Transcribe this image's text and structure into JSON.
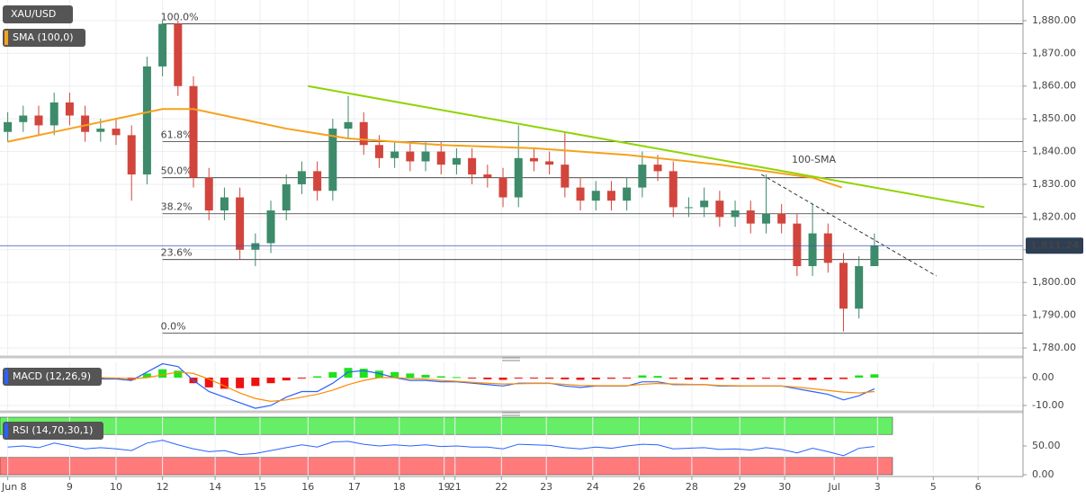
{
  "chart_data": [
    {
      "type": "candlestick",
      "title": "XAU/USD",
      "up_color": "#3d8b6a",
      "down_color": "#d2453c",
      "x": [
        0,
        1,
        2,
        3,
        4,
        5,
        6,
        7,
        8,
        9,
        10,
        11,
        12,
        13,
        14,
        15,
        16,
        17,
        18,
        19,
        20,
        21,
        22,
        23,
        24,
        25,
        26,
        27,
        28,
        29,
        30,
        31,
        32,
        33,
        34,
        35,
        36,
        37,
        38,
        39,
        40,
        41,
        42,
        43,
        44,
        45,
        46,
        47,
        48,
        49,
        50,
        51,
        52,
        53,
        54,
        55,
        56
      ],
      "open": [
        1846,
        1849,
        1851,
        1848,
        1855,
        1851,
        1846,
        1847,
        1845,
        1833,
        1866,
        1879,
        1860,
        1832,
        1822,
        1826,
        1810,
        1812,
        1822,
        1830,
        1834,
        1828,
        1847,
        1849,
        1842,
        1838,
        1840,
        1837,
        1840,
        1836,
        1838,
        1833,
        1832,
        1826,
        1838,
        1837,
        1836,
        1829,
        1825,
        1828,
        1825,
        1829,
        1836,
        1834,
        1823,
        1823,
        1825,
        1820,
        1822,
        1818,
        1821,
        1818,
        1805,
        1815,
        1806,
        1792,
        1805
      ],
      "high": [
        1852,
        1854,
        1854,
        1858,
        1858,
        1854,
        1850,
        1850,
        1848,
        1869,
        1880,
        1880,
        1863,
        1835,
        1829,
        1829,
        1815,
        1825,
        1833,
        1837,
        1837,
        1850,
        1857,
        1852,
        1845,
        1843,
        1843,
        1843,
        1843,
        1841,
        1841,
        1836,
        1835,
        1848,
        1841,
        1840,
        1846,
        1832,
        1831,
        1831,
        1832,
        1840,
        1839,
        1837,
        1826,
        1829,
        1828,
        1825,
        1825,
        1833,
        1824,
        1821,
        1824,
        1818,
        1809,
        1808,
        1815
      ],
      "low": [
        1843,
        1846,
        1845,
        1845,
        1848,
        1843,
        1843,
        1842,
        1825,
        1830,
        1863,
        1857,
        1829,
        1819,
        1819,
        1807,
        1805,
        1809,
        1819,
        1827,
        1825,
        1825,
        1844,
        1839,
        1835,
        1835,
        1834,
        1834,
        1833,
        1833,
        1830,
        1829,
        1823,
        1823,
        1834,
        1833,
        1826,
        1822,
        1822,
        1822,
        1822,
        1826,
        1831,
        1820,
        1820,
        1820,
        1817,
        1817,
        1815,
        1815,
        1815,
        1802,
        1802,
        1803,
        1785,
        1789,
        1805
      ],
      "close": [
        1849,
        1851,
        1848,
        1855,
        1851,
        1846,
        1847,
        1845,
        1833,
        1866,
        1879,
        1860,
        1832,
        1822,
        1826,
        1810,
        1812,
        1822,
        1830,
        1834,
        1828,
        1847,
        1849,
        1842,
        1838,
        1840,
        1837,
        1840,
        1836,
        1838,
        1833,
        1832,
        1826,
        1838,
        1837,
        1836,
        1829,
        1825,
        1828,
        1825,
        1829,
        1836,
        1834,
        1823,
        1823,
        1825,
        1820,
        1822,
        1818,
        1821,
        1818,
        1805,
        1815,
        1806,
        1792,
        1805,
        1811.24
      ],
      "sma": {
        "name": "SMA (100,0)",
        "color": "#f5a21b",
        "x": [
          0,
          5,
          10,
          12,
          15,
          18,
          22,
          28,
          34,
          40,
          46,
          52,
          53.9
        ],
        "values": [
          1843,
          1848,
          1853,
          1853,
          1850,
          1847,
          1844,
          1842,
          1841,
          1839,
          1836,
          1832,
          1829
        ]
      },
      "annotation": "100-SMA",
      "trend_lines": [
        {
          "color": "#8fd400",
          "dashed": false,
          "x": [
            19.4,
            63.1
          ],
          "values": [
            1860,
            1823
          ]
        },
        {
          "color": "#333333",
          "dashed": true,
          "x": [
            48.7,
            60
          ],
          "values": [
            1833,
            1802
          ]
        }
      ],
      "fib_levels": [
        {
          "label": "100.0%",
          "value": 1879
        },
        {
          "label": "61.8%",
          "value": 1843
        },
        {
          "label": "50.0%",
          "value": 1832
        },
        {
          "label": "38.2%",
          "value": 1821
        },
        {
          "label": "23.6%",
          "value": 1807
        },
        {
          "label": "0.0%",
          "value": 1784.5
        }
      ],
      "fib_start": 10,
      "last_price": {
        "value": 1811.24,
        "label": "1,811.24"
      },
      "xlim": [
        -0.5,
        65.6
      ],
      "ylim": [
        1777.8,
        1886.3
      ],
      "yticks": [
        {
          "value": 1780,
          "label": "1,780.00"
        },
        {
          "value": 1790,
          "label": "1,790.00"
        },
        {
          "value": 1800,
          "label": "1,800.00"
        },
        {
          "value": 1810,
          "label": "1,810.00"
        },
        {
          "value": 1820,
          "label": "1,820.00"
        },
        {
          "value": 1830,
          "label": "1,830.00"
        },
        {
          "value": 1840,
          "label": "1,840.00"
        },
        {
          "value": 1850,
          "label": "1,850.00"
        },
        {
          "value": 1860,
          "label": "1,860.00"
        },
        {
          "value": 1870,
          "label": "1,870.00"
        },
        {
          "value": 1880,
          "label": "1,880.00"
        }
      ]
    },
    {
      "type": "macd",
      "title": "MACD (12,26,9)",
      "up_color": "#1de21d",
      "down_color": "#ee1111",
      "histogram": [
        0,
        -0.3,
        -0.5,
        -0.2,
        0.3,
        -0.3,
        -0.5,
        -0.4,
        -0.8,
        1.5,
        3.0,
        2.5,
        -2.0,
        -3.5,
        -4.0,
        -3.8,
        -3.0,
        -2.0,
        -1.0,
        -0.3,
        0.5,
        2.0,
        3.5,
        3.2,
        2.5,
        2.0,
        1.5,
        1.0,
        0.5,
        0.2,
        -0.3,
        -0.6,
        -0.8,
        -0.3,
        -0.2,
        -0.4,
        -0.6,
        -0.8,
        -0.6,
        -0.4,
        -0.2,
        0.8,
        0.6,
        -0.4,
        -0.7,
        -0.6,
        -0.7,
        -0.6,
        -0.6,
        -0.4,
        -0.5,
        -0.7,
        -0.8,
        -0.6,
        -0.5,
        0.8,
        1.2
      ],
      "lines": [
        {
          "color": "#2962ff",
          "values": [
            0,
            0.2,
            0,
            0.5,
            0.5,
            0,
            -0.5,
            -0.5,
            -1,
            2,
            5,
            4,
            -1,
            -5,
            -7,
            -9,
            -11,
            -10,
            -7,
            -5,
            -5,
            -2,
            2,
            2.5,
            1.5,
            0,
            -1,
            -1,
            -1.5,
            -1.5,
            -2,
            -2.5,
            -3,
            -2,
            -2,
            -2,
            -3,
            -3.5,
            -3,
            -3,
            -3,
            -1.5,
            -1.5,
            -2.5,
            -2.5,
            -2.5,
            -3,
            -3,
            -3,
            -3,
            -3,
            -4,
            -5,
            -6,
            -8,
            -6.5,
            -4
          ]
        },
        {
          "color": "#ff8c00",
          "values": [
            0,
            0,
            0,
            0.2,
            0.3,
            0.2,
            0,
            -0.2,
            -0.4,
            0,
            1,
            2,
            1.5,
            -0.5,
            -3,
            -5.5,
            -7.5,
            -8.5,
            -8,
            -7,
            -6,
            -4.5,
            -2.5,
            -1,
            0,
            0,
            -0.3,
            -0.5,
            -1,
            -1.3,
            -1.7,
            -2,
            -2.3,
            -2.2,
            -2.1,
            -2.1,
            -2.4,
            -2.8,
            -2.9,
            -2.9,
            -2.9,
            -2.4,
            -2.1,
            -2.3,
            -2.4,
            -2.5,
            -2.8,
            -2.9,
            -3,
            -3,
            -3,
            -3.4,
            -4,
            -4.6,
            -5.2,
            -5.5,
            -5
          ]
        }
      ],
      "xlim": [
        -0.5,
        65.6
      ],
      "ylim": [
        -11.3,
        5.5
      ],
      "yticks": [
        {
          "value": 0,
          "label": "0.00"
        },
        {
          "value": -10,
          "label": "-10.00"
        }
      ]
    },
    {
      "type": "line",
      "title": "RSI (14,70,30,1)",
      "color": "#2962ff",
      "values": [
        48,
        50,
        47,
        55,
        50,
        45,
        47,
        45,
        42,
        55,
        60,
        52,
        45,
        40,
        42,
        35,
        37,
        42,
        47,
        52,
        48,
        57,
        58,
        53,
        50,
        52,
        50,
        52,
        49,
        50,
        48,
        48,
        45,
        53,
        52,
        51,
        47,
        45,
        48,
        46,
        50,
        53,
        52,
        45,
        46,
        47,
        44,
        45,
        43,
        47,
        44,
        38,
        46,
        40,
        33,
        46,
        49
      ],
      "bands": [
        {
          "from": 70,
          "to": 100,
          "color": "#66ee66"
        },
        {
          "from": 0,
          "to": 30,
          "color": "#ff7b7b"
        }
      ],
      "xlim": [
        -0.5,
        65.6
      ],
      "ylim": [
        0,
        100
      ],
      "yticks": [
        {
          "value": 0,
          "label": "0.00"
        },
        {
          "value": 50,
          "label": "50.00"
        }
      ],
      "xticks": [
        {
          "value": 0,
          "label": "Jun 8"
        },
        {
          "value": 4.0,
          "label": "9"
        },
        {
          "value": 7.0,
          "label": "10"
        },
        {
          "value": 10.0,
          "label": "12"
        },
        {
          "value": 13.4,
          "label": "14"
        },
        {
          "value": 16.3,
          "label": "15"
        },
        {
          "value": 19.4,
          "label": "16"
        },
        {
          "value": 22.4,
          "label": "17"
        },
        {
          "value": 25.3,
          "label": "18"
        },
        {
          "value": 28.2,
          "label": "19"
        },
        {
          "value": 28.9,
          "label": "21"
        },
        {
          "value": 31.9,
          "label": "22"
        },
        {
          "value": 34.8,
          "label": "23"
        },
        {
          "value": 37.8,
          "label": "24"
        },
        {
          "value": 40.8,
          "label": "26"
        },
        {
          "value": 44.2,
          "label": "28"
        },
        {
          "value": 47.3,
          "label": "29"
        },
        {
          "value": 50.2,
          "label": "30"
        },
        {
          "value": 53.4,
          "label": "Jul"
        },
        {
          "value": 56.2,
          "label": "3"
        },
        {
          "value": 59.8,
          "label": "5"
        },
        {
          "value": 62.7,
          "label": "6"
        }
      ]
    }
  ]
}
